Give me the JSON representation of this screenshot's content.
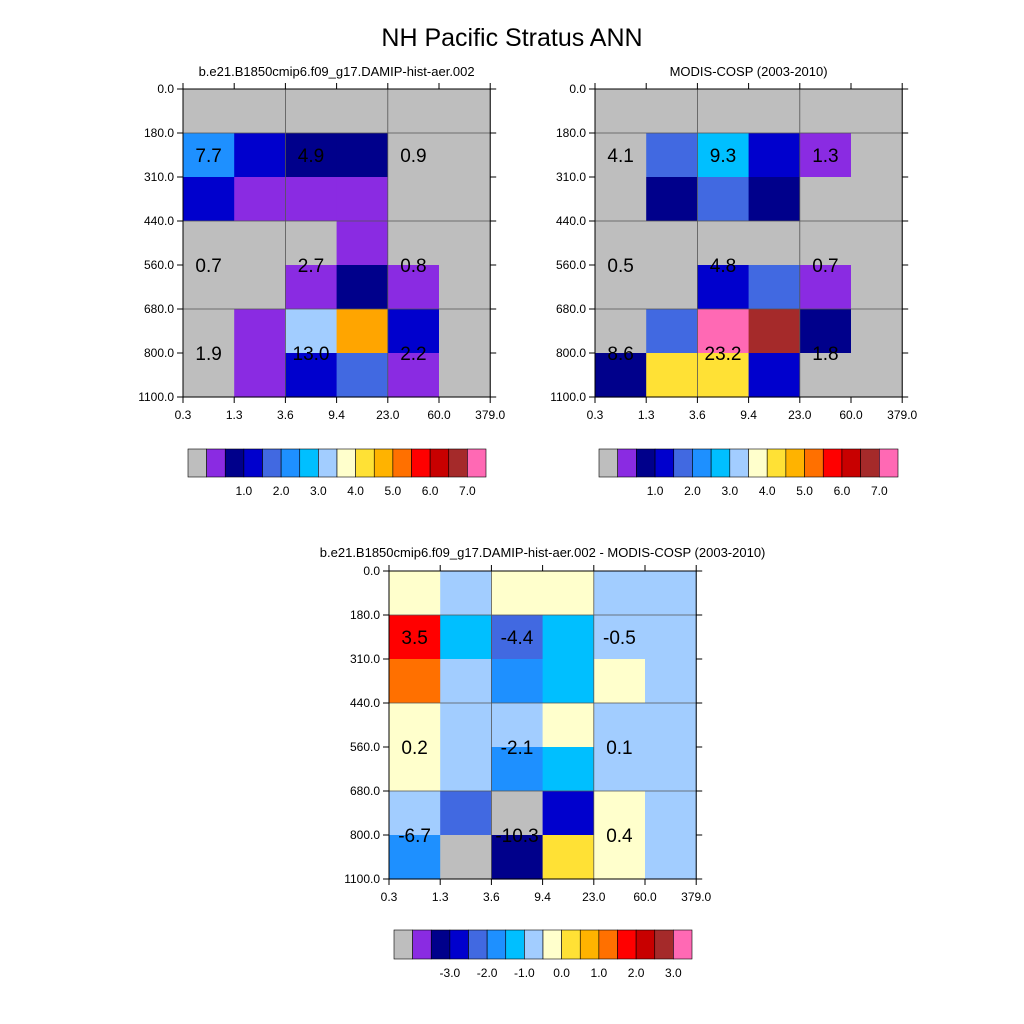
{
  "page": {
    "title": "NH Pacific Stratus ANN"
  },
  "chart_data": [
    {
      "type": "heatmap",
      "title": "b.e21.B1850cmip6.f09_g17.DAMIP-hist-aer.002",
      "x_ticks": [
        "0.3",
        "1.3",
        "3.6",
        "9.4",
        "23.0",
        "60.0",
        "379.0"
      ],
      "y_ticks": [
        "0.0",
        "180.0",
        "310.0",
        "440.0",
        "560.0",
        "680.0",
        "800.0",
        "1100.0"
      ],
      "grid_on": true,
      "cell_colors": [
        [
          "#bebebe",
          "#bebebe",
          "#bebebe",
          "#bebebe",
          "#bebebe",
          "#bebebe"
        ],
        [
          "#1e90ff",
          "#0000cd",
          "#00008b",
          "#00008b",
          "#bebebe",
          "#bebebe"
        ],
        [
          "#0000cd",
          "#8a2be2",
          "#8a2be2",
          "#8a2be2",
          "#bebebe",
          "#bebebe"
        ],
        [
          "#bebebe",
          "#bebebe",
          "#bebebe",
          "#8a2be2",
          "#bebebe",
          "#bebebe"
        ],
        [
          "#bebebe",
          "#bebebe",
          "#8a2be2",
          "#00008b",
          "#8a2be2",
          "#bebebe"
        ],
        [
          "#bebebe",
          "#8a2be2",
          "#a2cdff",
          "#ffa500",
          "#0000cd",
          "#bebebe"
        ],
        [
          "#bebebe",
          "#8a2be2",
          "#0000cd",
          "#4169e1",
          "#8a2be2",
          "#bebebe"
        ]
      ],
      "labels": [
        {
          "text": "7.7",
          "col": 0.5,
          "row": 1.5
        },
        {
          "text": "4.9",
          "col": 2.5,
          "row": 1.5
        },
        {
          "text": "0.9",
          "col": 4.5,
          "row": 1.5
        },
        {
          "text": "0.7",
          "col": 0.5,
          "row": 4.0
        },
        {
          "text": "2.7",
          "col": 2.5,
          "row": 4.0
        },
        {
          "text": "0.8",
          "col": 4.5,
          "row": 4.0
        },
        {
          "text": "1.9",
          "col": 0.5,
          "row": 6.0
        },
        {
          "text": "13.0",
          "col": 2.5,
          "row": 6.0
        },
        {
          "text": "2.2",
          "col": 4.5,
          "row": 6.0
        }
      ],
      "colorbar": {
        "colors": [
          "#bebebe",
          "#8a2be2",
          "#00008b",
          "#0000cd",
          "#4169e1",
          "#1e90ff",
          "#00bfff",
          "#a2cdff",
          "#ffffcc",
          "#ffe135",
          "#ffb300",
          "#ff7000",
          "#ff0000",
          "#c80000",
          "#a52a2a",
          "#ff69b4"
        ],
        "labels": [
          "1.0",
          "2.0",
          "3.0",
          "4.0",
          "5.0",
          "6.0",
          "7.0"
        ],
        "first_label_boundary": 3
      }
    },
    {
      "type": "heatmap",
      "title": "MODIS-COSP (2003-2010)",
      "x_ticks": [
        "0.3",
        "1.3",
        "3.6",
        "9.4",
        "23.0",
        "60.0",
        "379.0"
      ],
      "y_ticks": [
        "0.0",
        "180.0",
        "310.0",
        "440.0",
        "560.0",
        "680.0",
        "800.0",
        "1100.0"
      ],
      "grid_on": true,
      "cell_colors": [
        [
          "#bebebe",
          "#bebebe",
          "#bebebe",
          "#bebebe",
          "#bebebe",
          "#bebebe"
        ],
        [
          "#bebebe",
          "#4169e1",
          "#00bfff",
          "#0000cd",
          "#8a2be2",
          "#bebebe"
        ],
        [
          "#bebebe",
          "#00008b",
          "#4169e1",
          "#00008b",
          "#bebebe",
          "#bebebe"
        ],
        [
          "#bebebe",
          "#bebebe",
          "#bebebe",
          "#bebebe",
          "#bebebe",
          "#bebebe"
        ],
        [
          "#bebebe",
          "#bebebe",
          "#0000cd",
          "#4169e1",
          "#8a2be2",
          "#bebebe"
        ],
        [
          "#bebebe",
          "#4169e1",
          "#ff69b4",
          "#a52a2a",
          "#00008b",
          "#bebebe"
        ],
        [
          "#00008b",
          "#ffe135",
          "#ffe135",
          "#0000cd",
          "#bebebe",
          "#bebebe"
        ]
      ],
      "labels": [
        {
          "text": "4.1",
          "col": 0.5,
          "row": 1.5
        },
        {
          "text": "9.3",
          "col": 2.5,
          "row": 1.5
        },
        {
          "text": "1.3",
          "col": 4.5,
          "row": 1.5
        },
        {
          "text": "0.5",
          "col": 0.5,
          "row": 4.0
        },
        {
          "text": "4.8",
          "col": 2.5,
          "row": 4.0
        },
        {
          "text": "0.7",
          "col": 4.5,
          "row": 4.0
        },
        {
          "text": "8.6",
          "col": 0.5,
          "row": 6.0
        },
        {
          "text": "23.2",
          "col": 2.5,
          "row": 6.0
        },
        {
          "text": "1.8",
          "col": 4.5,
          "row": 6.0
        }
      ],
      "colorbar": {
        "colors": [
          "#bebebe",
          "#8a2be2",
          "#00008b",
          "#0000cd",
          "#4169e1",
          "#1e90ff",
          "#00bfff",
          "#a2cdff",
          "#ffffcc",
          "#ffe135",
          "#ffb300",
          "#ff7000",
          "#ff0000",
          "#c80000",
          "#a52a2a",
          "#ff69b4"
        ],
        "labels": [
          "1.0",
          "2.0",
          "3.0",
          "4.0",
          "5.0",
          "6.0",
          "7.0"
        ],
        "first_label_boundary": 3
      }
    },
    {
      "type": "heatmap",
      "title": "b.e21.B1850cmip6.f09_g17.DAMIP-hist-aer.002 - MODIS-COSP (2003-2010)",
      "x_ticks": [
        "0.3",
        "1.3",
        "3.6",
        "9.4",
        "23.0",
        "60.0",
        "379.0"
      ],
      "y_ticks": [
        "0.0",
        "180.0",
        "310.0",
        "440.0",
        "560.0",
        "680.0",
        "800.0",
        "1100.0"
      ],
      "grid_on": true,
      "cell_colors": [
        [
          "#ffffcc",
          "#a2cdff",
          "#ffffcc",
          "#ffffcc",
          "#a2cdff",
          "#a2cdff"
        ],
        [
          "#ff0000",
          "#00bfff",
          "#4169e1",
          "#00bfff",
          "#a2cdff",
          "#a2cdff"
        ],
        [
          "#ff7000",
          "#a2cdff",
          "#1e90ff",
          "#00bfff",
          "#ffffcc",
          "#a2cdff"
        ],
        [
          "#ffffcc",
          "#a2cdff",
          "#a2cdff",
          "#ffffcc",
          "#a2cdff",
          "#a2cdff"
        ],
        [
          "#ffffcc",
          "#a2cdff",
          "#1e90ff",
          "#00bfff",
          "#a2cdff",
          "#a2cdff"
        ],
        [
          "#a2cdff",
          "#4169e1",
          "#bebebe",
          "#0000cd",
          "#ffffcc",
          "#a2cdff"
        ],
        [
          "#1e90ff",
          "#bebebe",
          "#00008b",
          "#ffe135",
          "#ffffcc",
          "#a2cdff"
        ]
      ],
      "labels": [
        {
          "text": "3.5",
          "col": 0.5,
          "row": 1.5
        },
        {
          "text": "-4.4",
          "col": 2.5,
          "row": 1.5
        },
        {
          "text": "-0.5",
          "col": 4.5,
          "row": 1.5
        },
        {
          "text": "0.2",
          "col": 0.5,
          "row": 4.0
        },
        {
          "text": "-2.1",
          "col": 2.5,
          "row": 4.0
        },
        {
          "text": "0.1",
          "col": 4.5,
          "row": 4.0
        },
        {
          "text": "-6.7",
          "col": 0.5,
          "row": 6.0
        },
        {
          "text": "-10.3",
          "col": 2.5,
          "row": 6.0
        },
        {
          "text": "0.4",
          "col": 4.5,
          "row": 6.0
        }
      ],
      "colorbar": {
        "colors": [
          "#bebebe",
          "#8a2be2",
          "#00008b",
          "#0000cd",
          "#4169e1",
          "#1e90ff",
          "#00bfff",
          "#a2cdff",
          "#ffffcc",
          "#ffe135",
          "#ffb300",
          "#ff7000",
          "#ff0000",
          "#c80000",
          "#a52a2a",
          "#ff69b4"
        ],
        "labels": [
          "-3.0",
          "-2.0",
          "-1.0",
          "0.0",
          "1.0",
          "2.0",
          "3.0"
        ],
        "first_label_boundary": 3
      }
    }
  ]
}
